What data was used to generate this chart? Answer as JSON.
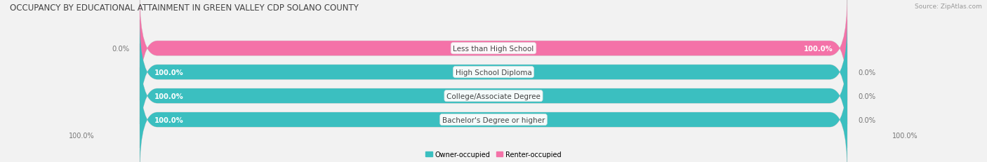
{
  "title": "OCCUPANCY BY EDUCATIONAL ATTAINMENT IN GREEN VALLEY CDP SOLANO COUNTY",
  "source": "Source: ZipAtlas.com",
  "categories": [
    "Less than High School",
    "High School Diploma",
    "College/Associate Degree",
    "Bachelor's Degree or higher"
  ],
  "owner_values": [
    0.0,
    100.0,
    100.0,
    100.0
  ],
  "renter_values": [
    100.0,
    0.0,
    0.0,
    0.0
  ],
  "owner_color": "#3bbfc0",
  "renter_color": "#f472a8",
  "bg_color": "#f2f2f2",
  "bar_bg_color": "#e2e2e2",
  "fig_width": 14.06,
  "fig_height": 2.32,
  "title_fontsize": 8.5,
  "bar_label_fontsize": 7.2,
  "cat_label_fontsize": 7.5,
  "tick_fontsize": 7.0,
  "source_fontsize": 6.5
}
